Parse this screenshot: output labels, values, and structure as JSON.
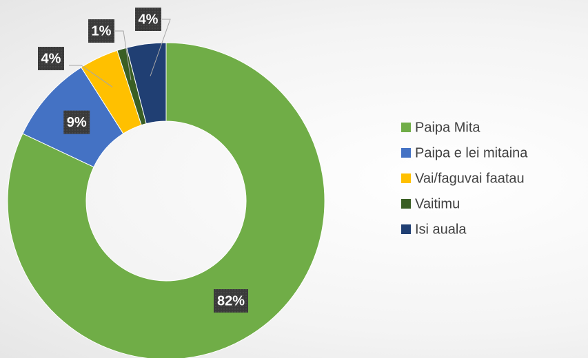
{
  "chart_data": {
    "type": "donut",
    "categories": [
      "Paipa Mita",
      "Paipa e lei mitaina",
      "Vai/faguvai faatau",
      "Vaitimu",
      "Isi auala"
    ],
    "values": [
      82,
      9,
      4,
      1,
      4
    ],
    "value_labels": [
      "82%",
      "9%",
      "4%",
      "1%",
      "4%"
    ],
    "colors": [
      "#70ad47",
      "#4472c4",
      "#ffc000",
      "#3a5f24",
      "#203f73"
    ],
    "legend": "right"
  }
}
